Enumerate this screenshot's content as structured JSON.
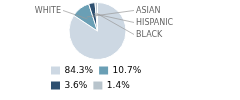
{
  "chart_data": {
    "type": "pie",
    "categories": [
      "WHITE",
      "ASIAN",
      "HISPANIC",
      "BLACK"
    ],
    "values": [
      84.3,
      10.7,
      3.6,
      1.4
    ],
    "value_labels": [
      "84.3%",
      "10.7%",
      "3.6%",
      "1.4%"
    ],
    "colors": [
      "#cdd8e3",
      "#6a9fb5",
      "#2e5070",
      "#b8c4cc"
    ],
    "legend": "lower left"
  }
}
